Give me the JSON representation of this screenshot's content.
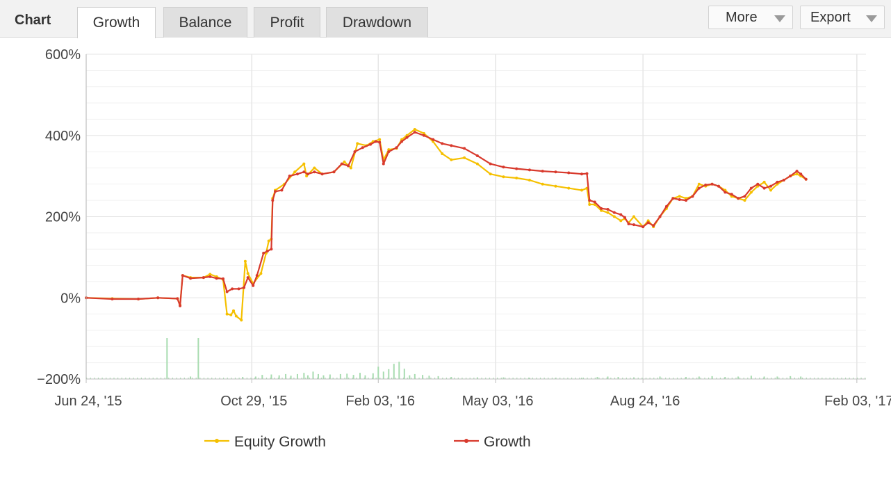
{
  "header": {
    "chart_label": "Chart",
    "tabs": [
      {
        "label": "Growth",
        "active": true
      },
      {
        "label": "Balance",
        "active": false
      },
      {
        "label": "Profit",
        "active": false
      },
      {
        "label": "Drawdown",
        "active": false
      }
    ],
    "more_label": "More",
    "export_label": "Export"
  },
  "colors": {
    "equity": "#f5c000",
    "growth": "#d83a2d",
    "volume": "#a8dcb0",
    "grid": "#e6e6e6",
    "axis": "#bdbdbd"
  },
  "icons": [
    "chevron-down-icon"
  ],
  "chart_data": {
    "type": "line",
    "ylim": [
      -200,
      600
    ],
    "y_ticks": [
      {
        "value": -200,
        "label": "−200%"
      },
      {
        "value": 0,
        "label": "0%"
      },
      {
        "value": 200,
        "label": "200%"
      },
      {
        "value": 400,
        "label": "400%"
      },
      {
        "value": 600,
        "label": "600%"
      }
    ],
    "x_ticks": [
      {
        "t": 0,
        "label": "Jun 24, '15"
      },
      {
        "t": 127,
        "label": "Oct 29, '15"
      },
      {
        "t": 224,
        "label": "Feb 03, '16"
      },
      {
        "t": 314,
        "label": "May 03, '16"
      },
      {
        "t": 427,
        "label": "Aug 24, '16"
      },
      {
        "t": 591,
        "label": "Feb 03, '17"
      }
    ],
    "x_max": 598,
    "series": [
      {
        "name": "Equity Growth",
        "points": [
          [
            0,
            0
          ],
          [
            20,
            -2
          ],
          [
            40,
            -3
          ],
          [
            55,
            0
          ],
          [
            70,
            -2
          ],
          [
            72,
            -18
          ],
          [
            74,
            55
          ],
          [
            80,
            50
          ],
          [
            90,
            50
          ],
          [
            95,
            58
          ],
          [
            100,
            52
          ],
          [
            105,
            45
          ],
          [
            108,
            -40
          ],
          [
            111,
            -42
          ],
          [
            113,
            -32
          ],
          [
            115,
            -45
          ],
          [
            119,
            -55
          ],
          [
            122,
            90
          ],
          [
            124,
            60
          ],
          [
            128,
            35
          ],
          [
            134,
            60
          ],
          [
            138,
            110
          ],
          [
            140,
            140
          ],
          [
            142,
            145
          ],
          [
            143,
            245
          ],
          [
            145,
            265
          ],
          [
            152,
            280
          ],
          [
            160,
            310
          ],
          [
            167,
            330
          ],
          [
            169,
            300
          ],
          [
            175,
            320
          ],
          [
            181,
            305
          ],
          [
            190,
            310
          ],
          [
            198,
            335
          ],
          [
            203,
            320
          ],
          [
            208,
            380
          ],
          [
            215,
            375
          ],
          [
            220,
            385
          ],
          [
            225,
            390
          ],
          [
            228,
            340
          ],
          [
            232,
            365
          ],
          [
            238,
            368
          ],
          [
            242,
            390
          ],
          [
            246,
            400
          ],
          [
            252,
            415
          ],
          [
            259,
            405
          ],
          [
            266,
            385
          ],
          [
            273,
            355
          ],
          [
            280,
            340
          ],
          [
            290,
            345
          ],
          [
            300,
            330
          ],
          [
            310,
            305
          ],
          [
            320,
            298
          ],
          [
            330,
            295
          ],
          [
            340,
            290
          ],
          [
            350,
            280
          ],
          [
            360,
            275
          ],
          [
            370,
            270
          ],
          [
            380,
            265
          ],
          [
            384,
            270
          ],
          [
            386,
            230
          ],
          [
            390,
            230
          ],
          [
            395,
            215
          ],
          [
            400,
            210
          ],
          [
            405,
            200
          ],
          [
            410,
            190
          ],
          [
            413,
            195
          ],
          [
            416,
            185
          ],
          [
            420,
            200
          ],
          [
            427,
            175
          ],
          [
            431,
            190
          ],
          [
            435,
            175
          ],
          [
            440,
            200
          ],
          [
            445,
            220
          ],
          [
            450,
            245
          ],
          [
            455,
            250
          ],
          [
            460,
            245
          ],
          [
            465,
            250
          ],
          [
            470,
            280
          ],
          [
            475,
            275
          ],
          [
            480,
            280
          ],
          [
            485,
            275
          ],
          [
            490,
            265
          ],
          [
            495,
            250
          ],
          [
            500,
            245
          ],
          [
            505,
            240
          ],
          [
            510,
            260
          ],
          [
            515,
            275
          ],
          [
            520,
            285
          ],
          [
            525,
            265
          ],
          [
            530,
            280
          ],
          [
            535,
            290
          ],
          [
            540,
            300
          ],
          [
            545,
            305
          ],
          [
            548,
            300
          ],
          [
            552,
            292
          ]
        ]
      },
      {
        "name": "Growth",
        "points": [
          [
            0,
            0
          ],
          [
            20,
            -3
          ],
          [
            40,
            -3
          ],
          [
            55,
            0
          ],
          [
            70,
            -2
          ],
          [
            72,
            -20
          ],
          [
            74,
            55
          ],
          [
            80,
            48
          ],
          [
            90,
            50
          ],
          [
            95,
            52
          ],
          [
            100,
            48
          ],
          [
            105,
            47
          ],
          [
            108,
            15
          ],
          [
            112,
            22
          ],
          [
            117,
            22
          ],
          [
            121,
            25
          ],
          [
            124,
            50
          ],
          [
            128,
            30
          ],
          [
            131,
            55
          ],
          [
            136,
            110
          ],
          [
            139,
            115
          ],
          [
            142,
            120
          ],
          [
            143,
            240
          ],
          [
            145,
            262
          ],
          [
            150,
            265
          ],
          [
            156,
            300
          ],
          [
            162,
            305
          ],
          [
            167,
            310
          ],
          [
            170,
            305
          ],
          [
            175,
            310
          ],
          [
            181,
            305
          ],
          [
            190,
            310
          ],
          [
            196,
            330
          ],
          [
            201,
            325
          ],
          [
            206,
            360
          ],
          [
            212,
            370
          ],
          [
            218,
            378
          ],
          [
            222,
            385
          ],
          [
            225,
            383
          ],
          [
            228,
            330
          ],
          [
            232,
            360
          ],
          [
            238,
            370
          ],
          [
            242,
            385
          ],
          [
            246,
            395
          ],
          [
            252,
            408
          ],
          [
            259,
            400
          ],
          [
            266,
            390
          ],
          [
            273,
            380
          ],
          [
            280,
            375
          ],
          [
            290,
            368
          ],
          [
            300,
            350
          ],
          [
            310,
            330
          ],
          [
            320,
            322
          ],
          [
            330,
            318
          ],
          [
            340,
            315
          ],
          [
            350,
            312
          ],
          [
            360,
            310
          ],
          [
            370,
            308
          ],
          [
            380,
            305
          ],
          [
            384,
            306
          ],
          [
            386,
            240
          ],
          [
            390,
            236
          ],
          [
            395,
            220
          ],
          [
            400,
            218
          ],
          [
            405,
            210
          ],
          [
            410,
            205
          ],
          [
            413,
            198
          ],
          [
            416,
            182
          ],
          [
            420,
            180
          ],
          [
            427,
            175
          ],
          [
            431,
            185
          ],
          [
            435,
            178
          ],
          [
            440,
            200
          ],
          [
            445,
            225
          ],
          [
            450,
            245
          ],
          [
            455,
            242
          ],
          [
            460,
            240
          ],
          [
            465,
            250
          ],
          [
            470,
            270
          ],
          [
            475,
            278
          ],
          [
            480,
            280
          ],
          [
            485,
            275
          ],
          [
            490,
            260
          ],
          [
            495,
            255
          ],
          [
            500,
            245
          ],
          [
            505,
            250
          ],
          [
            510,
            270
          ],
          [
            515,
            280
          ],
          [
            520,
            270
          ],
          [
            525,
            275
          ],
          [
            530,
            285
          ],
          [
            535,
            290
          ],
          [
            540,
            300
          ],
          [
            545,
            312
          ],
          [
            548,
            305
          ],
          [
            552,
            292
          ]
        ]
      }
    ],
    "volume": {
      "scale_max": 100,
      "bars": [
        [
          62,
          100
        ],
        [
          86,
          100
        ],
        [
          80,
          6
        ],
        [
          120,
          5
        ],
        [
          130,
          6
        ],
        [
          135,
          10
        ],
        [
          142,
          11
        ],
        [
          148,
          9
        ],
        [
          153,
          12
        ],
        [
          157,
          8
        ],
        [
          162,
          12
        ],
        [
          167,
          15
        ],
        [
          170,
          9
        ],
        [
          174,
          18
        ],
        [
          178,
          12
        ],
        [
          182,
          9
        ],
        [
          187,
          11
        ],
        [
          195,
          12
        ],
        [
          200,
          13
        ],
        [
          205,
          10
        ],
        [
          210,
          15
        ],
        [
          214,
          9
        ],
        [
          220,
          14
        ],
        [
          224,
          30
        ],
        [
          228,
          18
        ],
        [
          232,
          24
        ],
        [
          236,
          37
        ],
        [
          240,
          42
        ],
        [
          244,
          25
        ],
        [
          248,
          9
        ],
        [
          252,
          12
        ],
        [
          258,
          10
        ],
        [
          263,
          8
        ],
        [
          270,
          7
        ],
        [
          280,
          5
        ],
        [
          300,
          4
        ],
        [
          320,
          4
        ],
        [
          340,
          3
        ],
        [
          360,
          3
        ],
        [
          380,
          3
        ],
        [
          392,
          5
        ],
        [
          400,
          6
        ],
        [
          408,
          5
        ],
        [
          420,
          4
        ],
        [
          440,
          6
        ],
        [
          460,
          5
        ],
        [
          470,
          6
        ],
        [
          480,
          7
        ],
        [
          490,
          5
        ],
        [
          500,
          6
        ],
        [
          510,
          8
        ],
        [
          520,
          6
        ],
        [
          530,
          6
        ],
        [
          540,
          7
        ],
        [
          548,
          6
        ]
      ]
    }
  }
}
